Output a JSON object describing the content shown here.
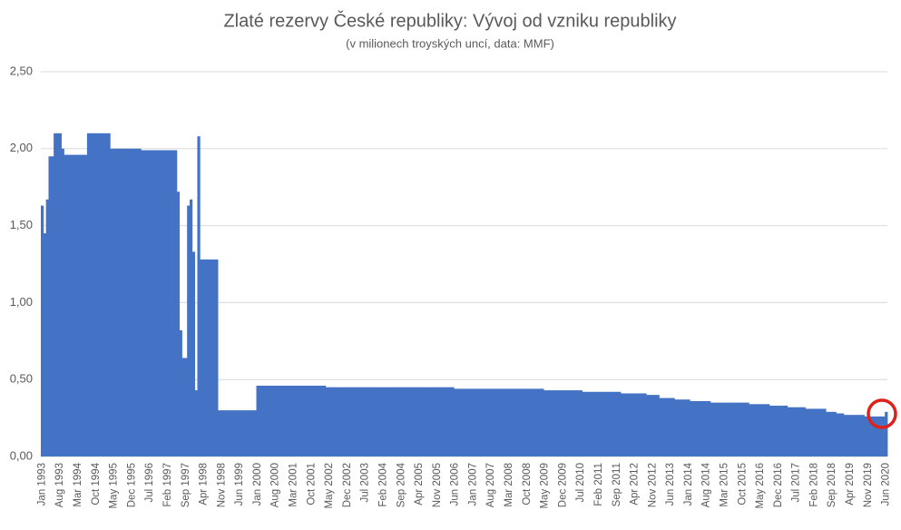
{
  "chart_data": {
    "type": "bar",
    "title": "Zlaté rezervy České republiky: Vývoj od vzniku republiky",
    "subtitle": "(v milionech troyských uncí, data: MMF)",
    "color": "#4472c4",
    "grid": true,
    "ylim": [
      0,
      2.5
    ],
    "yticks": [
      {
        "value": 0,
        "label": "0,00"
      },
      {
        "value": 0.5,
        "label": "0,50"
      },
      {
        "value": 1,
        "label": "1,00"
      },
      {
        "value": 1.5,
        "label": "1,50"
      },
      {
        "value": 2,
        "label": "2,00"
      },
      {
        "value": 2.5,
        "label": "2,50"
      }
    ],
    "categories": [
      "Jan 1993",
      null,
      null,
      null,
      null,
      null,
      null,
      "Aug 1993",
      null,
      null,
      null,
      null,
      null,
      null,
      "Mar 1994",
      null,
      null,
      null,
      null,
      null,
      null,
      "Oct 1994",
      null,
      null,
      null,
      null,
      null,
      null,
      "May 1995",
      null,
      null,
      null,
      null,
      null,
      null,
      "Dec 1995",
      null,
      null,
      null,
      null,
      null,
      null,
      "Jul 1996",
      null,
      null,
      null,
      null,
      null,
      null,
      "Feb 1997",
      null,
      null,
      null,
      null,
      null,
      null,
      "Sep 1997",
      null,
      null,
      null,
      null,
      null,
      null,
      "Apr 1998",
      null,
      null,
      null,
      null,
      null,
      null,
      "Nov 1998",
      null,
      null,
      null,
      null,
      null,
      null,
      "Jun 1999",
      null,
      null,
      null,
      null,
      null,
      null,
      "Jan 2000",
      null,
      null,
      null,
      null,
      null,
      null,
      "Aug 2000",
      null,
      null,
      null,
      null,
      null,
      null,
      "Mar 2001",
      null,
      null,
      null,
      null,
      null,
      null,
      "Oct 2001",
      null,
      null,
      null,
      null,
      null,
      null,
      "May 2002",
      null,
      null,
      null,
      null,
      null,
      null,
      "Dec 2002",
      null,
      null,
      null,
      null,
      null,
      null,
      "Jul 2003",
      null,
      null,
      null,
      null,
      null,
      null,
      "Feb 2004",
      null,
      null,
      null,
      null,
      null,
      null,
      "Sep 2004",
      null,
      null,
      null,
      null,
      null,
      null,
      "Apr 2005",
      null,
      null,
      null,
      null,
      null,
      null,
      "Nov 2005",
      null,
      null,
      null,
      null,
      null,
      null,
      "Jun 2006",
      null,
      null,
      null,
      null,
      null,
      null,
      "Jan 2007",
      null,
      null,
      null,
      null,
      null,
      null,
      "Aug 2007",
      null,
      null,
      null,
      null,
      null,
      null,
      "Mar 2008",
      null,
      null,
      null,
      null,
      null,
      null,
      "Oct 2008",
      null,
      null,
      null,
      null,
      null,
      null,
      "May 2009",
      null,
      null,
      null,
      null,
      null,
      null,
      "Dec 2009",
      null,
      null,
      null,
      null,
      null,
      null,
      "Jul 2010",
      null,
      null,
      null,
      null,
      null,
      null,
      "Feb 2011",
      null,
      null,
      null,
      null,
      null,
      null,
      "Sep 2011",
      null,
      null,
      null,
      null,
      null,
      null,
      "Apr 2012",
      null,
      null,
      null,
      null,
      null,
      null,
      "Nov 2012",
      null,
      null,
      null,
      null,
      null,
      null,
      "Jun 2013",
      null,
      null,
      null,
      null,
      null,
      null,
      "Jan 2014",
      null,
      null,
      null,
      null,
      null,
      null,
      "Aug 2014",
      null,
      null,
      null,
      null,
      null,
      null,
      "Mar 2015",
      null,
      null,
      null,
      null,
      null,
      null,
      "Oct 2015",
      null,
      null,
      null,
      null,
      null,
      null,
      "May 2016",
      null,
      null,
      null,
      null,
      null,
      null,
      "Dec 2016",
      null,
      null,
      null,
      null,
      null,
      null,
      "Jul 2017",
      null,
      null,
      null,
      null,
      null,
      null,
      "Feb 2018",
      null,
      null,
      null,
      null,
      null,
      null,
      "Sep 2018",
      null,
      null,
      null,
      null,
      null,
      null,
      "Apr 2019",
      null,
      null,
      null,
      null,
      null,
      null,
      "Nov 2019",
      null,
      null,
      null,
      null,
      null,
      null,
      "Jun 2020"
    ],
    "values": [
      1.63,
      1.45,
      1.67,
      1.95,
      1.95,
      2.1,
      2.1,
      2.1,
      2.0,
      1.96,
      1.96,
      1.96,
      1.96,
      1.96,
      1.96,
      1.96,
      1.96,
      1.96,
      2.1,
      2.1,
      2.1,
      2.1,
      2.1,
      2.1,
      2.1,
      2.1,
      2.1,
      2.0,
      2.0,
      2.0,
      2.0,
      2.0,
      2.0,
      2.0,
      2.0,
      2.0,
      2.0,
      2.0,
      2.0,
      1.99,
      1.99,
      1.99,
      1.99,
      1.99,
      1.99,
      1.99,
      1.99,
      1.99,
      1.99,
      1.99,
      1.99,
      1.99,
      1.99,
      1.72,
      0.82,
      0.64,
      0.64,
      1.63,
      1.67,
      1.33,
      0.43,
      2.08,
      1.28,
      1.28,
      1.28,
      1.28,
      1.28,
      1.28,
      1.28,
      0.3,
      0.3,
      0.3,
      0.3,
      0.3,
      0.3,
      0.3,
      0.3,
      0.3,
      0.3,
      0.3,
      0.3,
      0.3,
      0.3,
      0.3,
      0.46,
      0.46,
      0.46,
      0.46,
      0.46,
      0.46,
      0.46,
      0.46,
      0.46,
      0.46,
      0.46,
      0.46,
      0.46,
      0.46,
      0.46,
      0.46,
      0.46,
      0.46,
      0.46,
      0.46,
      0.46,
      0.46,
      0.46,
      0.46,
      0.46,
      0.46,
      0.46,
      0.45,
      0.45,
      0.45,
      0.45,
      0.45,
      0.45,
      0.45,
      0.45,
      0.45,
      0.45,
      0.45,
      0.45,
      0.45,
      0.45,
      0.45,
      0.45,
      0.45,
      0.45,
      0.45,
      0.45,
      0.45,
      0.45,
      0.45,
      0.45,
      0.45,
      0.45,
      0.45,
      0.45,
      0.45,
      0.45,
      0.45,
      0.45,
      0.45,
      0.45,
      0.45,
      0.45,
      0.45,
      0.45,
      0.45,
      0.45,
      0.45,
      0.45,
      0.45,
      0.45,
      0.45,
      0.45,
      0.45,
      0.45,
      0.45,
      0.45,
      0.44,
      0.44,
      0.44,
      0.44,
      0.44,
      0.44,
      0.44,
      0.44,
      0.44,
      0.44,
      0.44,
      0.44,
      0.44,
      0.44,
      0.44,
      0.44,
      0.44,
      0.44,
      0.44,
      0.44,
      0.44,
      0.44,
      0.44,
      0.44,
      0.44,
      0.44,
      0.44,
      0.44,
      0.44,
      0.44,
      0.44,
      0.44,
      0.44,
      0.44,
      0.44,
      0.43,
      0.43,
      0.43,
      0.43,
      0.43,
      0.43,
      0.43,
      0.43,
      0.43,
      0.43,
      0.43,
      0.43,
      0.43,
      0.43,
      0.43,
      0.42,
      0.42,
      0.42,
      0.42,
      0.42,
      0.42,
      0.42,
      0.42,
      0.42,
      0.42,
      0.42,
      0.42,
      0.42,
      0.42,
      0.42,
      0.41,
      0.41,
      0.41,
      0.41,
      0.41,
      0.41,
      0.41,
      0.41,
      0.41,
      0.41,
      0.4,
      0.4,
      0.4,
      0.4,
      0.4,
      0.38,
      0.38,
      0.38,
      0.38,
      0.38,
      0.38,
      0.37,
      0.37,
      0.37,
      0.37,
      0.37,
      0.37,
      0.36,
      0.36,
      0.36,
      0.36,
      0.36,
      0.36,
      0.36,
      0.36,
      0.35,
      0.35,
      0.35,
      0.35,
      0.35,
      0.35,
      0.35,
      0.35,
      0.35,
      0.35,
      0.35,
      0.35,
      0.35,
      0.35,
      0.35,
      0.34,
      0.34,
      0.34,
      0.34,
      0.34,
      0.34,
      0.34,
      0.34,
      0.33,
      0.33,
      0.33,
      0.33,
      0.33,
      0.33,
      0.33,
      0.32,
      0.32,
      0.32,
      0.32,
      0.32,
      0.32,
      0.32,
      0.31,
      0.31,
      0.31,
      0.31,
      0.31,
      0.31,
      0.31,
      0.31,
      0.29,
      0.29,
      0.29,
      0.29,
      0.28,
      0.28,
      0.28,
      0.27,
      0.27,
      0.27,
      0.27,
      0.27,
      0.27,
      0.27,
      0.27,
      0.26,
      0.26,
      0.26,
      0.26,
      0.26,
      0.26,
      0.26,
      0.26,
      0.29
    ]
  }
}
